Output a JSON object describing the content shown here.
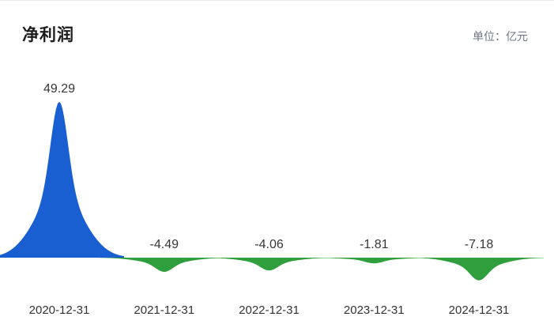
{
  "header": {
    "title": "净利润",
    "unit_label": "单位：亿元"
  },
  "chart_data": {
    "type": "area",
    "subtype": "kernel-peak-area",
    "title": "净利润",
    "unit": "亿元",
    "categories": [
      "2020-12-31",
      "2021-12-31",
      "2022-12-31",
      "2023-12-31",
      "2024-12-31"
    ],
    "values": [
      49.29,
      -4.49,
      -4.06,
      -1.81,
      -7.18
    ],
    "value_labels": [
      "49.29",
      "-4.49",
      "-4.06",
      "-1.81",
      "-7.18"
    ],
    "series": [
      {
        "name": "净利润",
        "values": [
          49.29,
          -4.49,
          -4.06,
          -1.81,
          -7.18
        ]
      }
    ],
    "positive_color": "#1a5fd1",
    "negative_color": "#2e9f3c",
    "baseline": 0,
    "ylim": [
      -10,
      55
    ],
    "grid": false,
    "legend": "none",
    "y_axis_visible": false,
    "x_axis_line_visible": false
  }
}
